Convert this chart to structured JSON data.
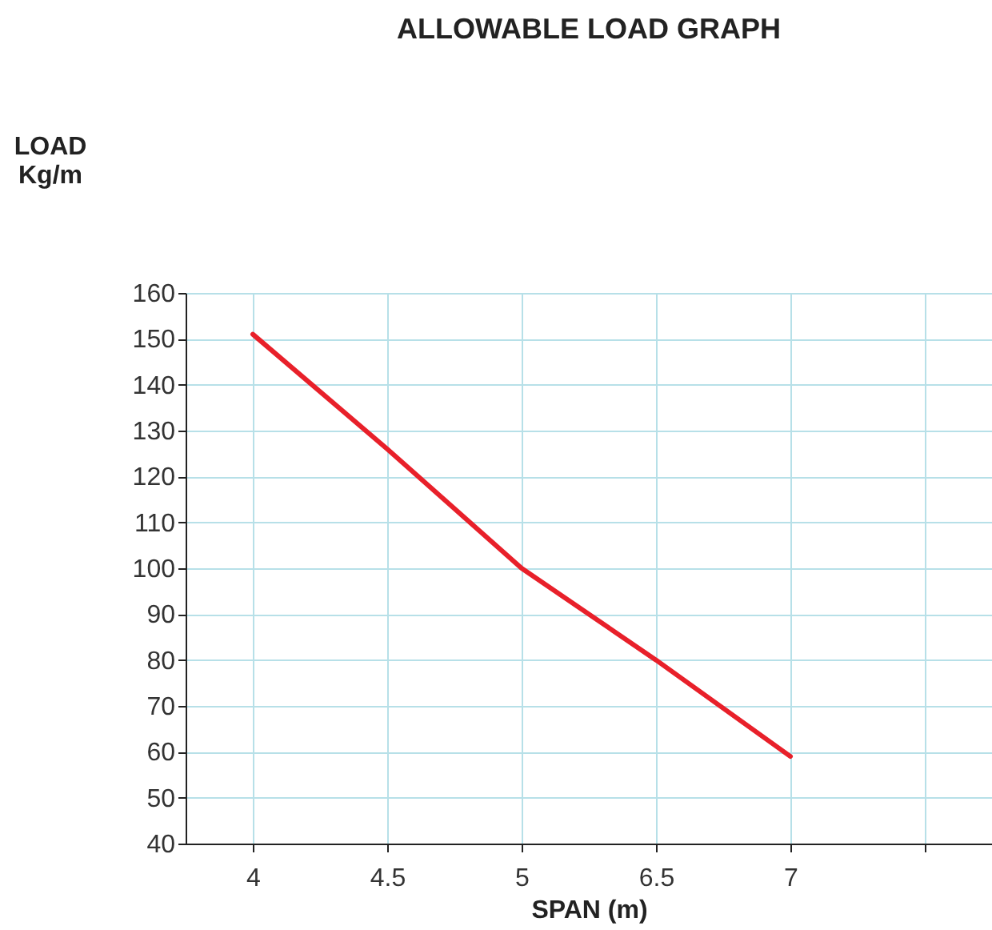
{
  "chart_data": {
    "type": "line",
    "title": "ALLOWABLE LOAD GRAPH",
    "xlabel": "SPAN (m)",
    "ylabel": "LOAD\nKg/m",
    "categories": [
      "4",
      "4.5",
      "5",
      "6.5",
      "7",
      null
    ],
    "series": [
      {
        "color": "#e8202a",
        "values": [
          151,
          126,
          100,
          80,
          59,
          null
        ]
      }
    ],
    "ylim": [
      40,
      160
    ],
    "yticks": [
      40,
      50,
      60,
      70,
      80,
      90,
      100,
      110,
      120,
      130,
      140,
      150,
      160
    ],
    "grid": true,
    "marker": "none",
    "line_style": "solid"
  }
}
